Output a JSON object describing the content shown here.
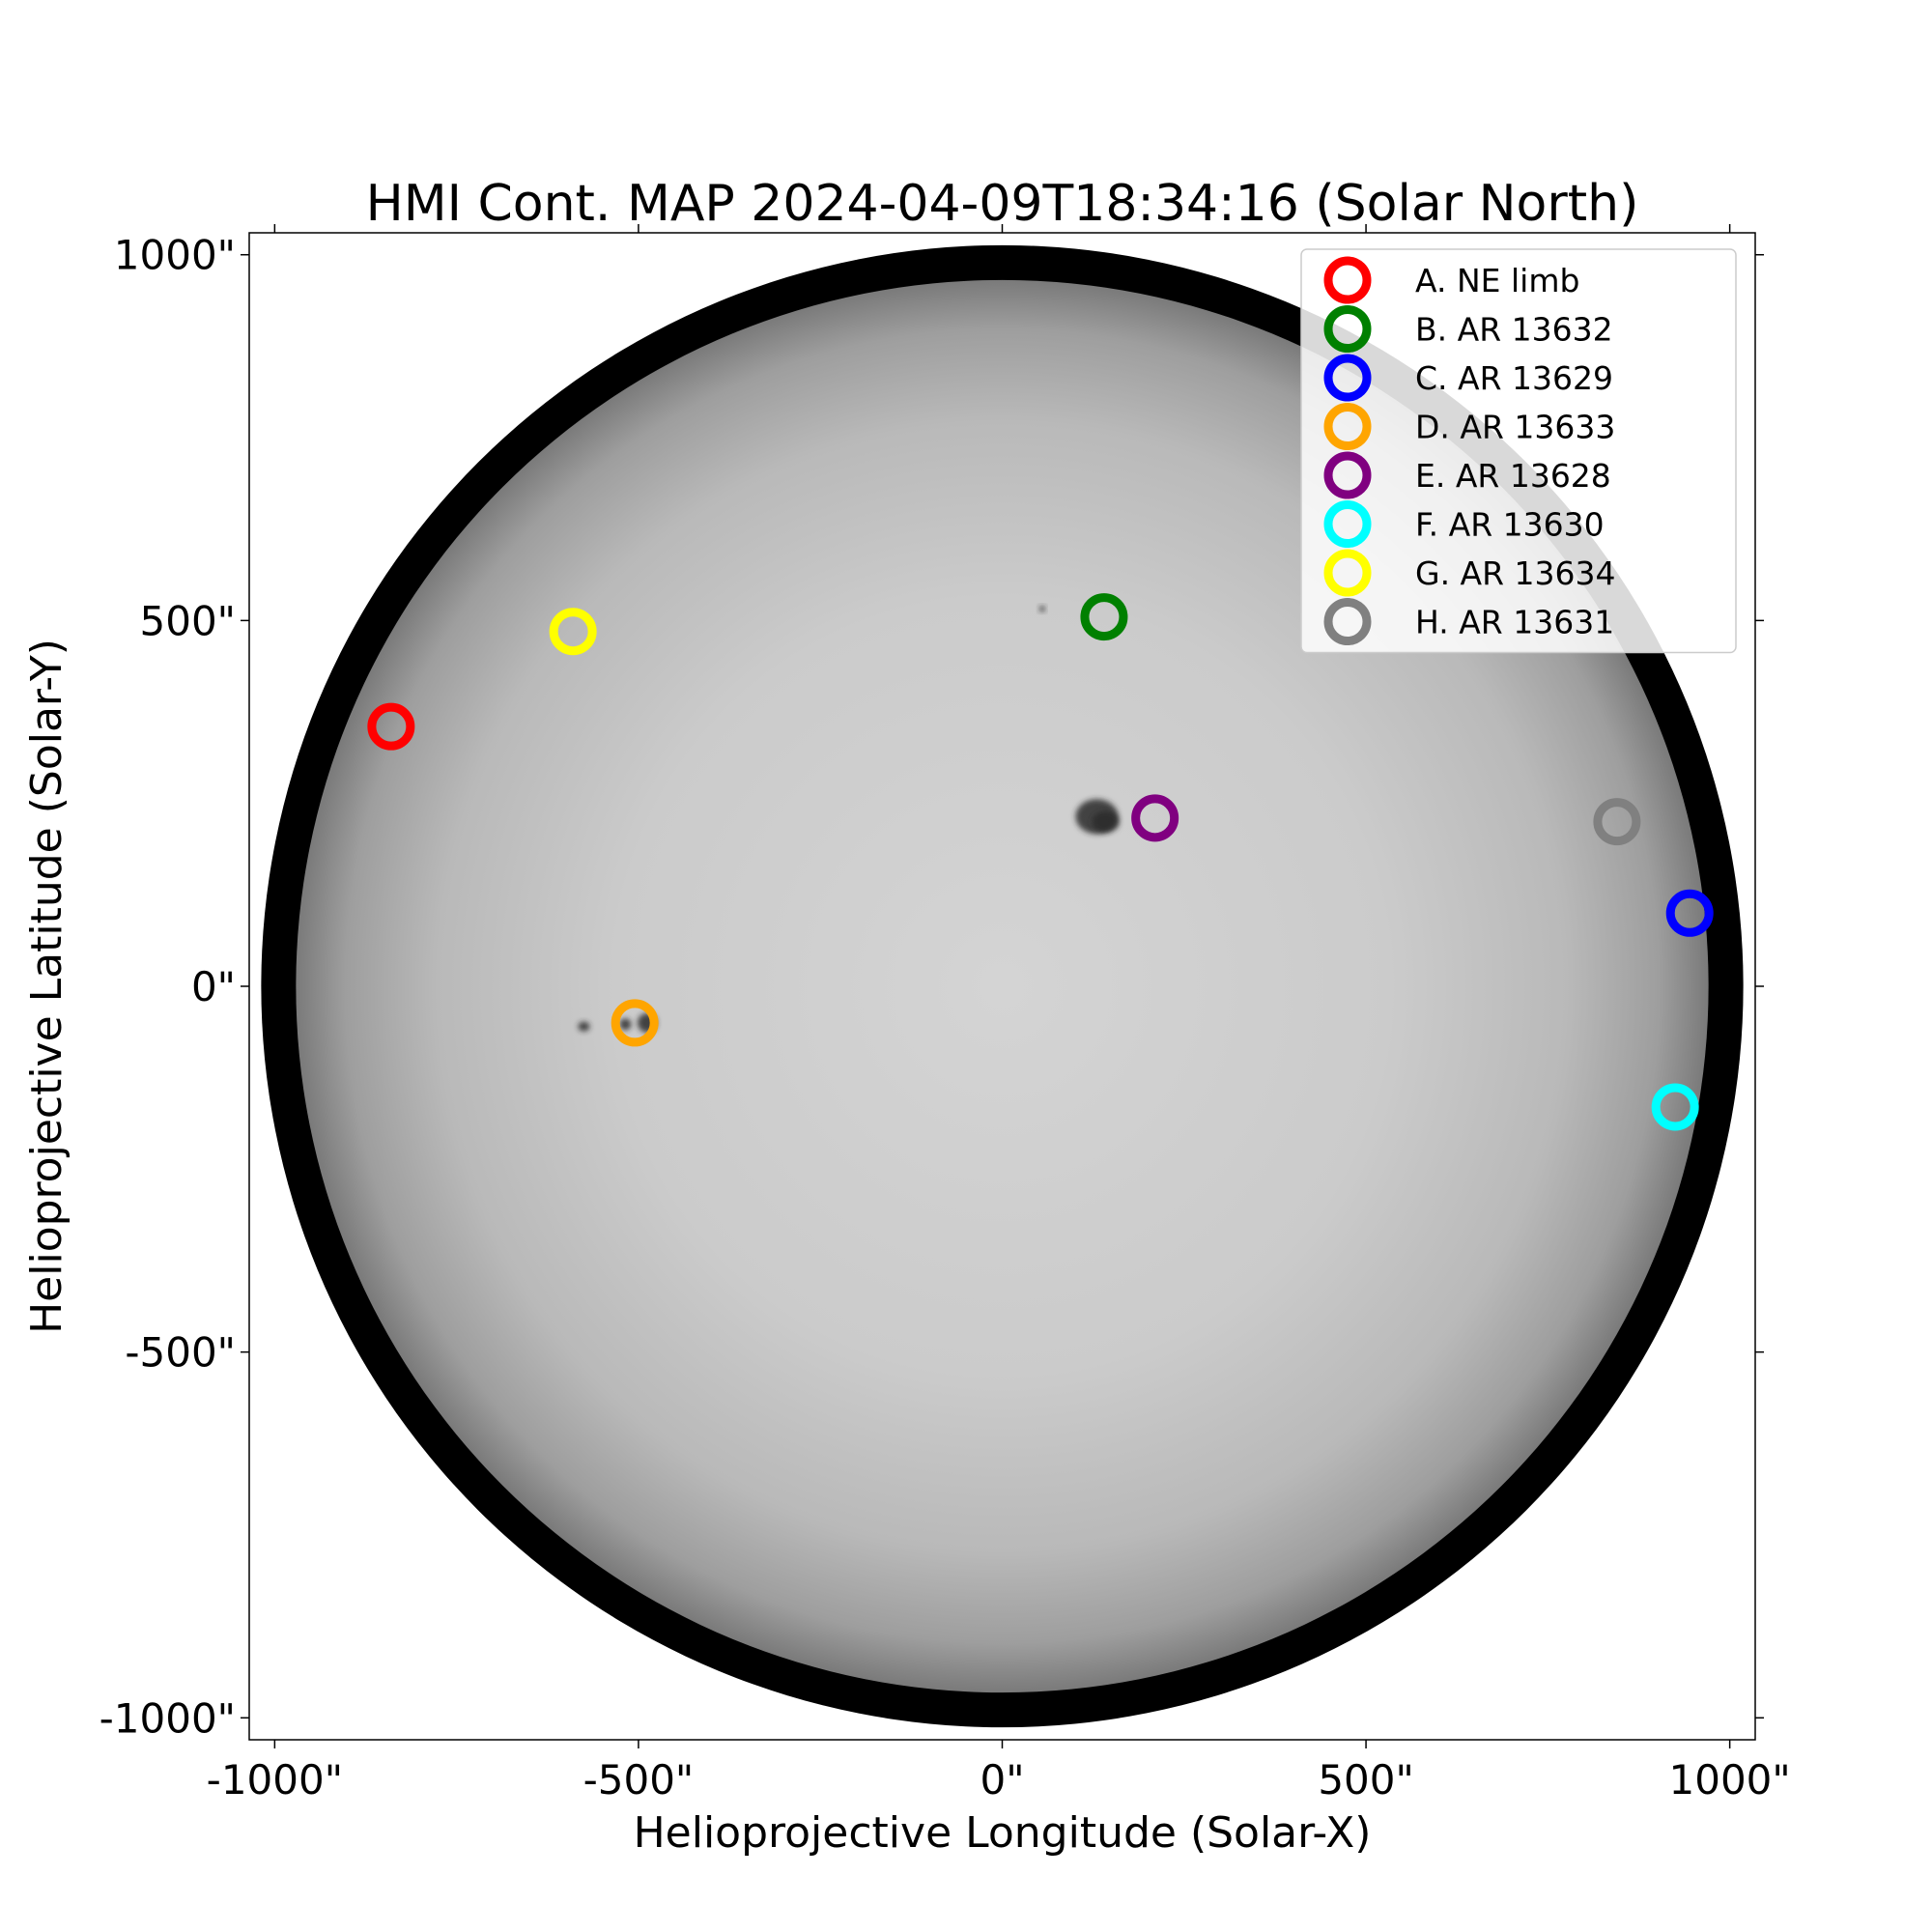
{
  "chart_data": {
    "type": "scatter",
    "title": "HMI Cont. MAP 2024-04-09T18:34:16 (Solar North)",
    "xlabel": "Helioprojective Longitude (Solar-X)",
    "ylabel": "Helioprojective Latitude (Solar-Y)",
    "xlim": [
      -1035,
      1035
    ],
    "ylim": [
      -1030,
      1030
    ],
    "x_ticks": [
      {
        "value": -1000,
        "label": "-1000\""
      },
      {
        "value": -500,
        "label": "-500\""
      },
      {
        "value": 0,
        "label": "0\""
      },
      {
        "value": 500,
        "label": "500\""
      },
      {
        "value": 1000,
        "label": "1000\""
      }
    ],
    "y_ticks": [
      {
        "value": 1000,
        "label": "1000\""
      },
      {
        "value": 500,
        "label": "500\""
      },
      {
        "value": 0,
        "label": "0\""
      },
      {
        "value": -500,
        "label": "-500\""
      },
      {
        "value": -1000,
        "label": "-1000\""
      }
    ],
    "legend_position": "top-right",
    "grid": false,
    "background_image": "solar-disk-continuum",
    "solar_radius_arcsec": 1000,
    "series": [
      {
        "name": "A.  NE limb",
        "color": "#ff0000",
        "x": -840,
        "y": 355
      },
      {
        "name": "B.  AR 13632",
        "color": "#008000",
        "x": 140,
        "y": 505
      },
      {
        "name": "C.  AR 13629",
        "color": "#0000ff",
        "x": 945,
        "y": 100
      },
      {
        "name": "D.  AR 13633",
        "color": "#ffa500",
        "x": -505,
        "y": -50
      },
      {
        "name": "E.  AR 13628",
        "color": "#800080",
        "x": 210,
        "y": 230
      },
      {
        "name": "F.  AR 13630",
        "color": "#00ffff",
        "x": 925,
        "y": -165
      },
      {
        "name": "G.  AR 13634",
        "color": "#ffff00",
        "x": -590,
        "y": 485
      },
      {
        "name": "H.  AR 13631",
        "color": "#808080",
        "x": 845,
        "y": 225
      }
    ],
    "sunspots": [
      {
        "x": 130,
        "y": 232,
        "rx": 22,
        "ry": 18
      },
      {
        "x": 142,
        "y": 225,
        "rx": 14,
        "ry": 11
      },
      {
        "x": -488,
        "y": -50,
        "rx": 10,
        "ry": 10
      },
      {
        "x": -518,
        "y": -52,
        "rx": 6,
        "ry": 6
      },
      {
        "x": -575,
        "y": -55,
        "rx": 6,
        "ry": 5
      },
      {
        "x": 55,
        "y": 516,
        "rx": 3,
        "ry": 3
      }
    ]
  }
}
